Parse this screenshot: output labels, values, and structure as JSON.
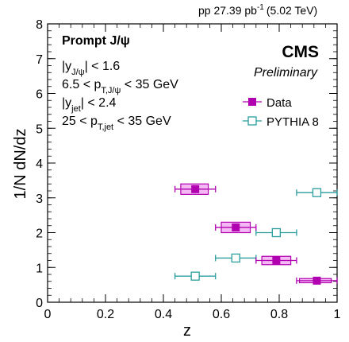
{
  "header": {
    "lumi_label": "pp 27.39 pb",
    "lumi_exponent": "-1",
    "energy_label": "(5.02 TeV)"
  },
  "cms": {
    "label": "CMS",
    "sublabel": "Preliminary"
  },
  "cuts": {
    "title": "Prompt J/ψ",
    "lines": [
      {
        "pre": "|y",
        "sub": "J/ψ",
        "post": "| < 1.6"
      },
      {
        "pre": "6.5 < p",
        "sub": "T,J/ψ",
        "post": " < 35 GeV"
      },
      {
        "pre": "|y",
        "sub": "jet",
        "post": "| < 2.4"
      },
      {
        "pre": "25 < p",
        "sub": "T,jet",
        "post": " < 35 GeV"
      }
    ]
  },
  "colors": {
    "data": "#b000b0",
    "data_box": "#f4b8f4",
    "pythia": "#2a9d9d"
  },
  "chart_data": {
    "type": "scatter",
    "xlabel": "z",
    "ylabel": "1/N dN/dz",
    "xlim": [
      0,
      1
    ],
    "ylim": [
      0,
      8
    ],
    "xticks": [
      0,
      0.2,
      0.4,
      0.6,
      0.8,
      1
    ],
    "xtick_labels": [
      "0",
      "0.2",
      "0.4",
      "0.6",
      "0.8",
      "1"
    ],
    "yticks": [
      0,
      1,
      2,
      3,
      4,
      5,
      6,
      7,
      8
    ],
    "ytick_labels": [
      "0",
      "1",
      "2",
      "3",
      "4",
      "5",
      "6",
      "7",
      "8"
    ],
    "legend_position": "right",
    "series": [
      {
        "name": "Data",
        "marker": "filled-square",
        "points": [
          {
            "x": 0.51,
            "y": 3.25,
            "xerr": [
              0.44,
              0.58
            ],
            "syst_x": [
              0.46,
              0.555
            ],
            "syst_y": [
              3.1,
              3.4
            ]
          },
          {
            "x": 0.65,
            "y": 2.15,
            "xerr": [
              0.58,
              0.72
            ],
            "syst_x": [
              0.6,
              0.7
            ],
            "syst_y": [
              2.0,
              2.3
            ]
          },
          {
            "x": 0.79,
            "y": 1.2,
            "xerr": [
              0.72,
              0.86
            ],
            "syst_x": [
              0.74,
              0.84
            ],
            "syst_y": [
              1.08,
              1.32
            ]
          },
          {
            "x": 0.93,
            "y": 0.62,
            "xerr": [
              0.86,
              1.0
            ],
            "syst_x": [
              0.87,
              0.98
            ],
            "syst_y": [
              0.56,
              0.68
            ]
          }
        ]
      },
      {
        "name": "PYTHIA 8",
        "marker": "open-square",
        "points": [
          {
            "x": 0.51,
            "y": 0.75,
            "xerr": [
              0.44,
              0.58
            ]
          },
          {
            "x": 0.65,
            "y": 1.27,
            "xerr": [
              0.58,
              0.72
            ]
          },
          {
            "x": 0.79,
            "y": 2.0,
            "xerr": [
              0.72,
              0.86
            ]
          },
          {
            "x": 0.93,
            "y": 3.15,
            "xerr": [
              0.86,
              1.0
            ]
          }
        ]
      }
    ]
  }
}
